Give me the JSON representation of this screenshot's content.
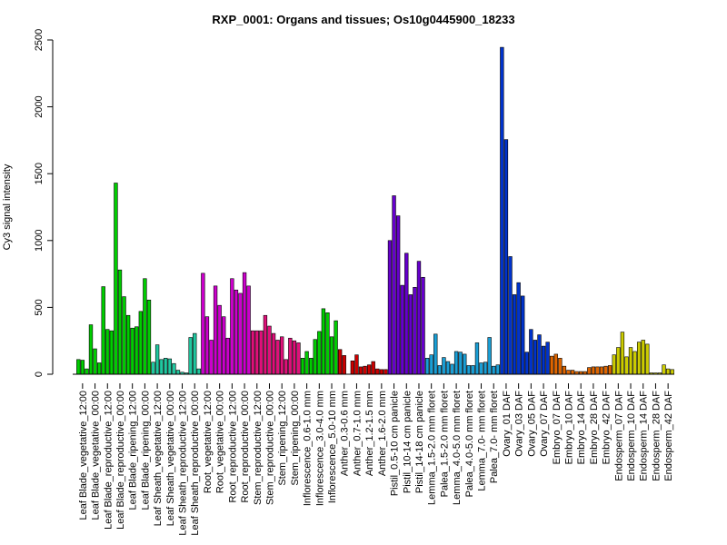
{
  "chart_data": {
    "type": "bar",
    "title": "RXP_0001: Organs and tissues; Os10g0445900_18233",
    "ylabel": "Cy3 signal intensity",
    "xlabel": "",
    "ylim": [
      0,
      2500
    ],
    "yticks": [
      0,
      500,
      1000,
      1500,
      2000,
      2500
    ],
    "grid": false,
    "legend": "none",
    "groups": [
      {
        "label": "Leaf Blade_vegetative_12:00",
        "color": "#00cc00",
        "values": [
          110,
          105,
          40
        ]
      },
      {
        "label": "Leaf Blade_vegetative_00:00",
        "color": "#00cc00",
        "values": [
          370,
          190,
          85
        ]
      },
      {
        "label": "Leaf Blade_reproductive_12:00",
        "color": "#00cc00",
        "values": [
          655,
          335,
          325
        ]
      },
      {
        "label": "Leaf Blade_reproductive_00:00",
        "color": "#00cc00",
        "values": [
          1430,
          780,
          580
        ]
      },
      {
        "label": "Leaf Blade_ripening_12:00",
        "color": "#00cc00",
        "values": [
          440,
          345,
          355
        ]
      },
      {
        "label": "Leaf Blade_ripening_00:00",
        "color": "#00cc00",
        "values": [
          470,
          715,
          555
        ]
      },
      {
        "label": "Leaf Sheath_vegetative_12:00",
        "color": "#20c8a0",
        "values": [
          90,
          220,
          110
        ]
      },
      {
        "label": "Leaf Sheath_vegetative_00:00",
        "color": "#20c8a0",
        "values": [
          120,
          115,
          80
        ]
      },
      {
        "label": "Leaf Sheath_reproductive_12:00",
        "color": "#20c8a0",
        "values": [
          30,
          15,
          10
        ]
      },
      {
        "label": "Leaf Sheath_reproductive_00:00",
        "color": "#20c8a0",
        "values": [
          275,
          305,
          40
        ]
      },
      {
        "label": "Root_vegetative_12:00",
        "color": "#cc00cc",
        "values": [
          755,
          430,
          255
        ]
      },
      {
        "label": "Root_vegetative_00:00",
        "color": "#cc00cc",
        "values": [
          660,
          515,
          430
        ]
      },
      {
        "label": "Root_reproductive_12:00",
        "color": "#cc00cc",
        "values": [
          270,
          715,
          630
        ]
      },
      {
        "label": "Root_reproductive_00:00",
        "color": "#cc00cc",
        "values": [
          605,
          760,
          660
        ]
      },
      {
        "label": "Stem_reproductive_12:00",
        "color": "#e0107a",
        "values": [
          325,
          325,
          325
        ]
      },
      {
        "label": "Stem_reproductive_00:00",
        "color": "#e0107a",
        "values": [
          440,
          360,
          305
        ]
      },
      {
        "label": "Stem_ripening_12:00",
        "color": "#e0107a",
        "values": [
          255,
          280,
          110
        ]
      },
      {
        "label": "Stem_ripening_00:00",
        "color": "#e0107a",
        "values": [
          270,
          250,
          235
        ]
      },
      {
        "label": "Inflorescence_0.6-1.0 mm",
        "color": "#00cc00",
        "values": [
          120,
          170,
          120
        ]
      },
      {
        "label": "Inflorescence_3.0-4.0 mm",
        "color": "#00cc00",
        "values": [
          260,
          320,
          490
        ]
      },
      {
        "label": "Inflorescence_5.0-10 mm",
        "color": "#00cc00",
        "values": [
          460,
          280,
          400
        ]
      },
      {
        "label": "Anther_0.3-0.6 mm",
        "color": "#cc0000",
        "values": [
          185,
          140,
          0
        ]
      },
      {
        "label": "Anther_0.7-1.0 mm",
        "color": "#cc0000",
        "values": [
          100,
          145,
          55
        ]
      },
      {
        "label": "Anther_1.2-1.5 mm",
        "color": "#cc0000",
        "values": [
          60,
          70,
          95
        ]
      },
      {
        "label": "Anther_1.6-2.0 mm",
        "color": "#cc0000",
        "values": [
          40,
          35,
          35
        ]
      },
      {
        "label": "Pistil_0.5-10 cm panicle",
        "color": "#6600cc",
        "values": [
          1000,
          1335,
          1185
        ]
      },
      {
        "label": "Pistil_10-14 cm panicle",
        "color": "#6600cc",
        "values": [
          665,
          905,
          595
        ]
      },
      {
        "label": "Pistil_14-18 cm panicle",
        "color": "#6600cc",
        "values": [
          650,
          845,
          725
        ]
      },
      {
        "label": "Lemma_1.5-2.0 mm floret",
        "color": "#1a9fd6",
        "values": [
          120,
          145,
          300
        ]
      },
      {
        "label": "Palea_1.5-2.0 mm floret",
        "color": "#1a9fd6",
        "values": [
          65,
          125,
          95
        ]
      },
      {
        "label": "Lemma_4.0-5.0 mm floret",
        "color": "#1a9fd6",
        "values": [
          75,
          170,
          165
        ]
      },
      {
        "label": "Palea_4.0-5.0 mm floret",
        "color": "#1a9fd6",
        "values": [
          150,
          65,
          65
        ]
      },
      {
        "label": "Lemma_7.0- mm floret",
        "color": "#1a9fd6",
        "values": [
          235,
          85,
          90
        ]
      },
      {
        "label": "Palea_7.0- mm floret",
        "color": "#1a9fd6",
        "values": [
          275,
          60,
          70
        ]
      },
      {
        "label": "Ovary_01 DAF",
        "color": "#0033cc",
        "values": [
          2445,
          1755,
          880
        ]
      },
      {
        "label": "Ovary_03 DAF",
        "color": "#0033cc",
        "values": [
          595,
          685,
          585
        ]
      },
      {
        "label": "Ovary_05 DAF",
        "color": "#0033cc",
        "values": [
          165,
          335,
          255
        ]
      },
      {
        "label": "Ovary_07 DAF",
        "color": "#0033cc",
        "values": [
          295,
          210,
          240
        ]
      },
      {
        "label": "Embryo_07 DAF",
        "color": "#e06600",
        "values": [
          135,
          150,
          120
        ]
      },
      {
        "label": "Embryo_10 DAF",
        "color": "#e06600",
        "values": [
          60,
          30,
          30
        ]
      },
      {
        "label": "Embryo_14 DAF",
        "color": "#e06600",
        "values": [
          20,
          20,
          20
        ]
      },
      {
        "label": "Embryo_28 DAF",
        "color": "#e06600",
        "values": [
          50,
          55,
          55
        ]
      },
      {
        "label": "Embryo_42 DAF",
        "color": "#e06600",
        "values": [
          55,
          60,
          65
        ]
      },
      {
        "label": "Endosperm_07 DAF",
        "color": "#cccc00",
        "values": [
          145,
          200,
          315
        ]
      },
      {
        "label": "Endosperm_10 DAF",
        "color": "#cccc00",
        "values": [
          130,
          200,
          170
        ]
      },
      {
        "label": "Endosperm_14 DAF",
        "color": "#cccc00",
        "values": [
          240,
          255,
          225
        ]
      },
      {
        "label": "Endosperm_28 DAF",
        "color": "#cccc00",
        "values": [
          10,
          10,
          10
        ]
      },
      {
        "label": "Endosperm_42 DAF",
        "color": "#cccc00",
        "values": [
          70,
          40,
          35
        ]
      }
    ]
  }
}
